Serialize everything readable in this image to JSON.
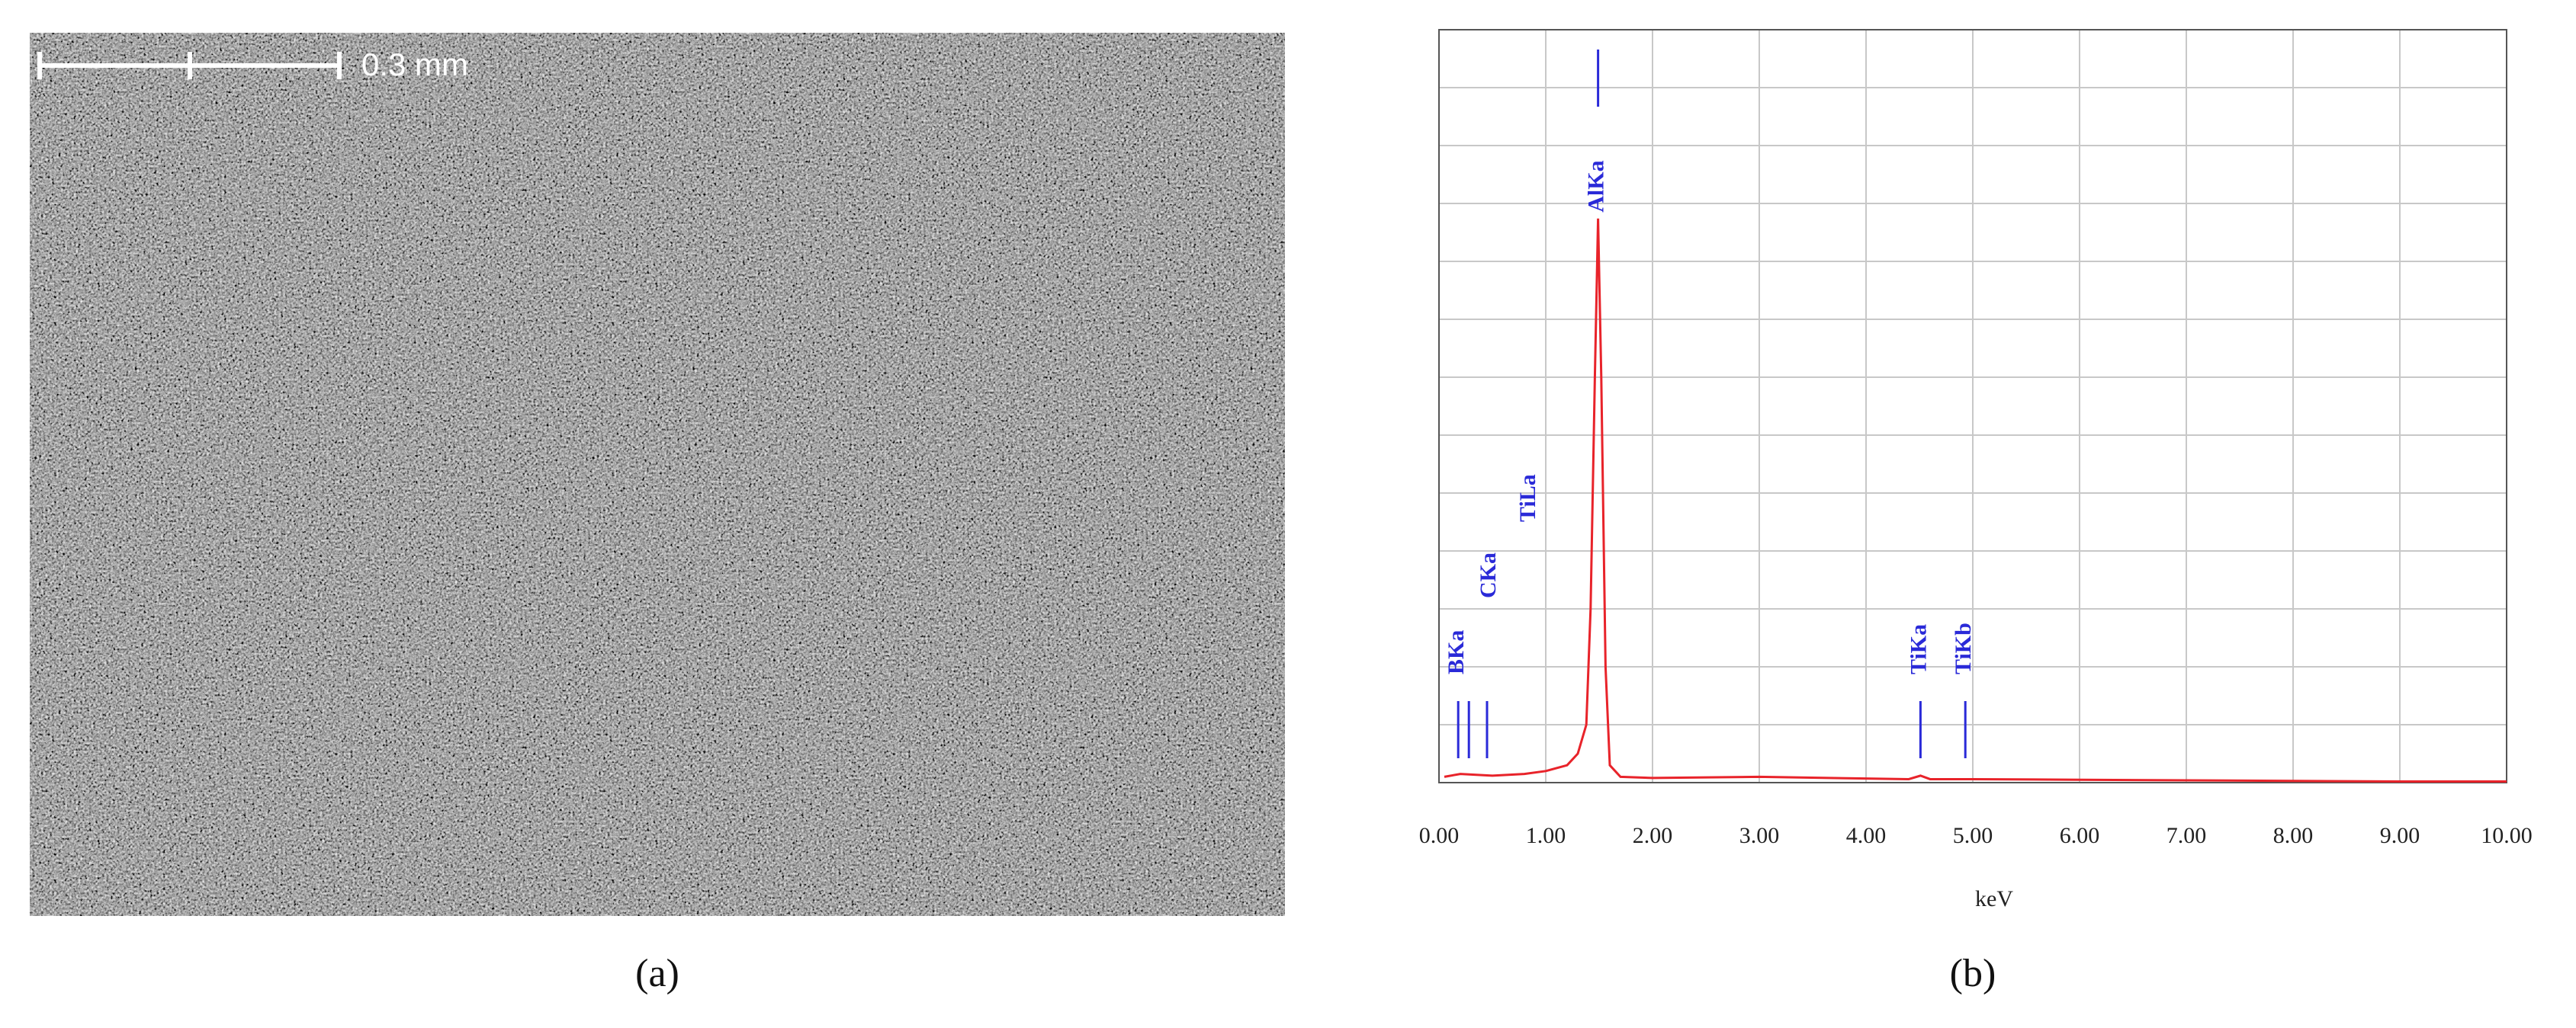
{
  "image_panel": {
    "scale_label": "0.3 mm",
    "caption": "(a)"
  },
  "chart_data": {
    "type": "line",
    "caption": "(b)",
    "x_label": "keV",
    "x": [
      0.05,
      0.2,
      0.5,
      0.8,
      1.0,
      1.2,
      1.3,
      1.38,
      1.42,
      1.46,
      1.49,
      1.52,
      1.56,
      1.6,
      1.7,
      2.0,
      3.0,
      4.0,
      4.4,
      4.51,
      4.6,
      5.0,
      6.0,
      7.0,
      8.0,
      9.0,
      10.0
    ],
    "series": [
      {
        "color": "#e8232a",
        "values": [
          0.1,
          0.15,
          0.12,
          0.15,
          0.2,
          0.3,
          0.5,
          1.0,
          3.0,
          7.0,
          9.74,
          7.0,
          2.0,
          0.3,
          0.1,
          0.08,
          0.1,
          0.07,
          0.06,
          0.12,
          0.06,
          0.06,
          0.05,
          0.04,
          0.03,
          0.02,
          0.02
        ]
      }
    ],
    "xlim": [
      0,
      10
    ],
    "ylim": [
      0,
      13
    ],
    "xticks": [
      {
        "value": 0,
        "label": "0.00"
      },
      {
        "value": 1,
        "label": "1.00"
      },
      {
        "value": 2,
        "label": "2.00"
      },
      {
        "value": 3,
        "label": "3.00"
      },
      {
        "value": 4,
        "label": "4.00"
      },
      {
        "value": 5,
        "label": "5.00"
      },
      {
        "value": 6,
        "label": "6.00"
      },
      {
        "value": 7,
        "label": "7.00"
      },
      {
        "value": 8,
        "label": "8.00"
      },
      {
        "value": 9,
        "label": "9.00"
      },
      {
        "value": 10,
        "label": "10.00"
      }
    ],
    "grid": true,
    "peaks": [
      {
        "label": "BKa",
        "x": 0.18
      },
      {
        "label": "CKa",
        "x": 0.28
      },
      {
        "label": "TiLa",
        "x": 0.45
      },
      {
        "label": "AlKa",
        "x": 1.49
      },
      {
        "label": "TiKa",
        "x": 4.51
      },
      {
        "label": "TiKb",
        "x": 4.93
      }
    ]
  }
}
